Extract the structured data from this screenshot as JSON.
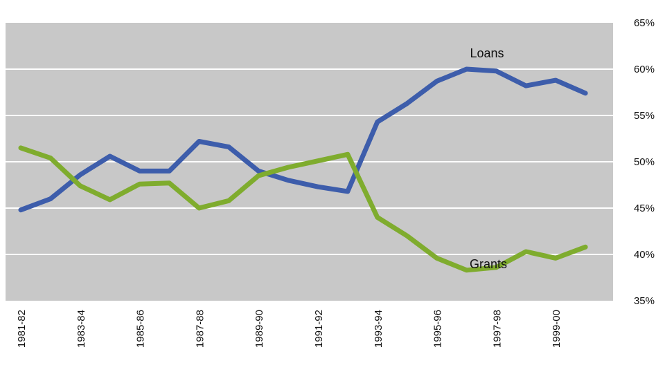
{
  "chart_data": {
    "type": "line",
    "x": [
      "1981-82",
      "1982-83",
      "1983-84",
      "1984-85",
      "1985-86",
      "1986-87",
      "1987-88",
      "1988-89",
      "1989-90",
      "1990-91",
      "1991-92",
      "1992-93",
      "1993-94",
      "1994-95",
      "1995-96",
      "1996-97",
      "1997-98",
      "1998-99",
      "1999-00",
      "2000-01"
    ],
    "tick_labels": [
      "1981-82",
      "1983-84",
      "1985-86",
      "1987-88",
      "1989-90",
      "1991-92",
      "1993-94",
      "1995-96",
      "1997-98",
      "1999-00"
    ],
    "series": [
      {
        "name": "Loans",
        "color": "#3d5dab",
        "values": [
          44.8,
          46.0,
          48.6,
          50.6,
          49.0,
          49.0,
          52.2,
          51.6,
          49.0,
          48.0,
          47.3,
          46.8,
          54.3,
          56.3,
          58.7,
          60.0,
          59.8,
          58.2,
          58.8,
          57.4
        ]
      },
      {
        "name": "Grants",
        "color": "#7fac2e",
        "values": [
          51.5,
          50.4,
          47.4,
          45.9,
          47.6,
          47.7,
          45.0,
          45.8,
          48.5,
          49.4,
          50.1,
          50.8,
          44.0,
          42.0,
          39.6,
          38.3,
          38.6,
          40.3,
          39.6,
          40.8
        ]
      }
    ],
    "y_ticks": [
      "35%",
      "40%",
      "45%",
      "50%",
      "55%",
      "60%",
      "65%"
    ],
    "ylim": [
      35,
      65
    ],
    "grid": true,
    "background": "#c8c8c8",
    "gridline_color": "#ffffff"
  }
}
